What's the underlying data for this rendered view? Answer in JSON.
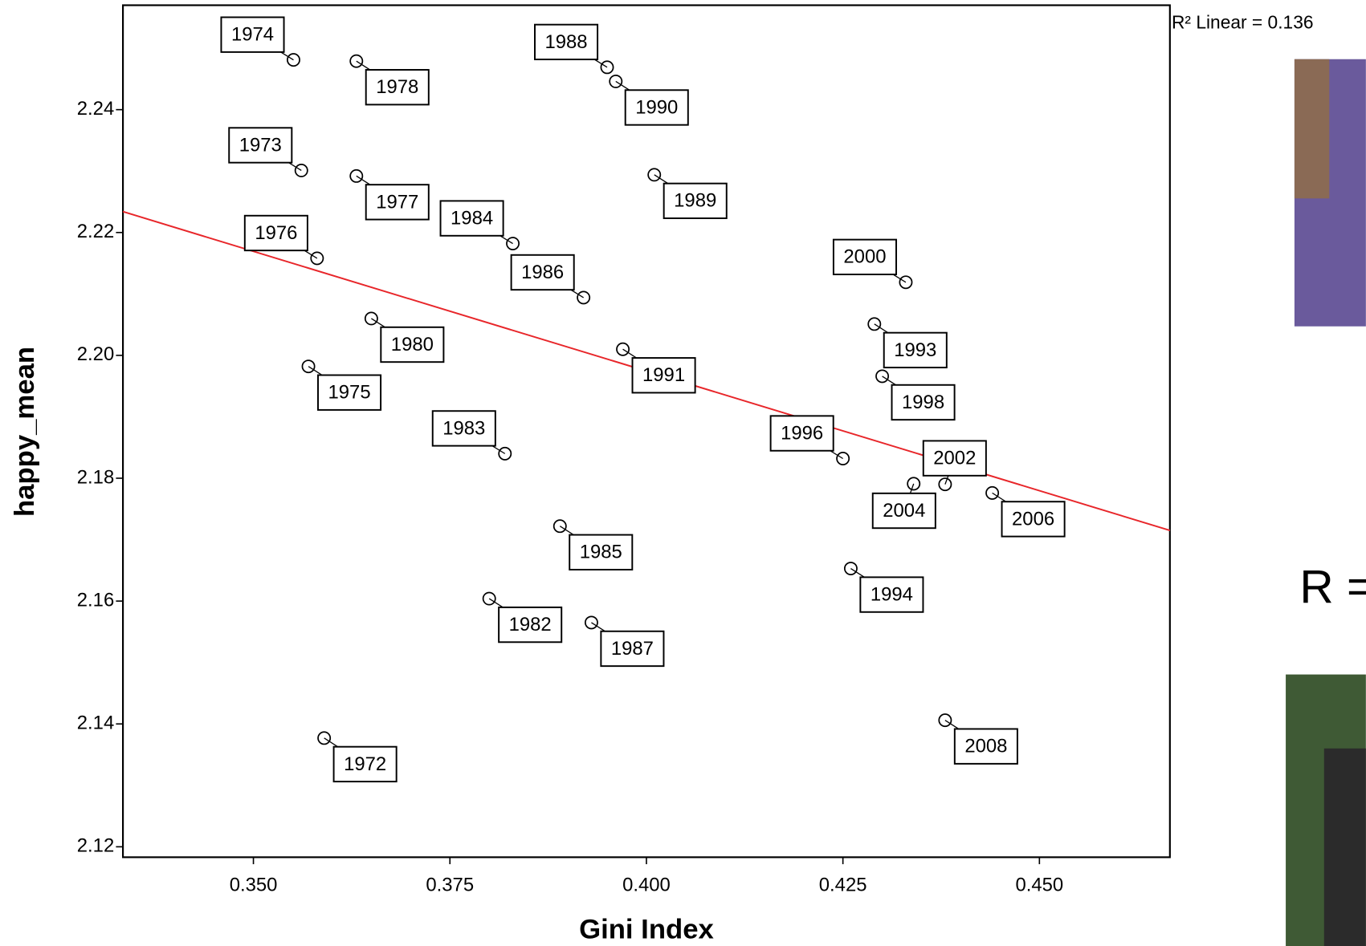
{
  "chart_data": {
    "type": "scatter",
    "x_label": "Gini Index",
    "y_label": "happy_mean",
    "annotation": "R² Linear = 0.136",
    "side_text": "R =",
    "labels": [
      "1974",
      "1978",
      "1988",
      "1990",
      "1973",
      "1977",
      "1989",
      "1984",
      "1976",
      "1986",
      "2000",
      "1980",
      "1993",
      "1991",
      "1975",
      "1998",
      "1983",
      "1996",
      "2004",
      "2002",
      "2006",
      "1985",
      "1994",
      "1982",
      "1987",
      "2008",
      "1972"
    ],
    "x": [
      0.3551,
      0.3631,
      0.395,
      0.3961,
      0.3561,
      0.3631,
      0.401,
      0.383,
      0.3581,
      0.392,
      0.433,
      0.365,
      0.429,
      0.397,
      0.357,
      0.43,
      0.382,
      0.425,
      0.434,
      0.438,
      0.444,
      0.389,
      0.426,
      0.38,
      0.393,
      0.438,
      0.359
    ],
    "values": [
      2.2481,
      2.2479,
      2.2469,
      2.2446,
      2.2301,
      2.2292,
      2.2294,
      2.2182,
      2.2158,
      2.2094,
      2.2119,
      2.206,
      2.2051,
      2.201,
      2.1982,
      2.1966,
      2.184,
      2.1832,
      2.1791,
      2.179,
      2.1776,
      2.1722,
      2.1653,
      2.1604,
      2.1565,
      2.1406,
      2.1377
    ],
    "color": "#000000",
    "fit_line": {
      "x": [
        0.3334,
        0.4666
      ],
      "y": [
        2.2234,
        2.1715
      ],
      "color": "#e8262a"
    },
    "xlim": [
      0.3334,
      0.4666
    ],
    "ylim": [
      2.1183,
      2.257
    ],
    "xticks": [
      {
        "value": 0.35,
        "label": "0.350"
      },
      {
        "value": 0.375,
        "label": "0.375"
      },
      {
        "value": 0.4,
        "label": "0.400"
      },
      {
        "value": 0.425,
        "label": "0.425"
      },
      {
        "value": 0.45,
        "label": "0.450"
      }
    ],
    "yticks": [
      2.12,
      2.14,
      2.16,
      2.18,
      {
        "value": 2.2,
        "label": "2.20"
      },
      2.22,
      2.24
    ],
    "grid": false
  }
}
